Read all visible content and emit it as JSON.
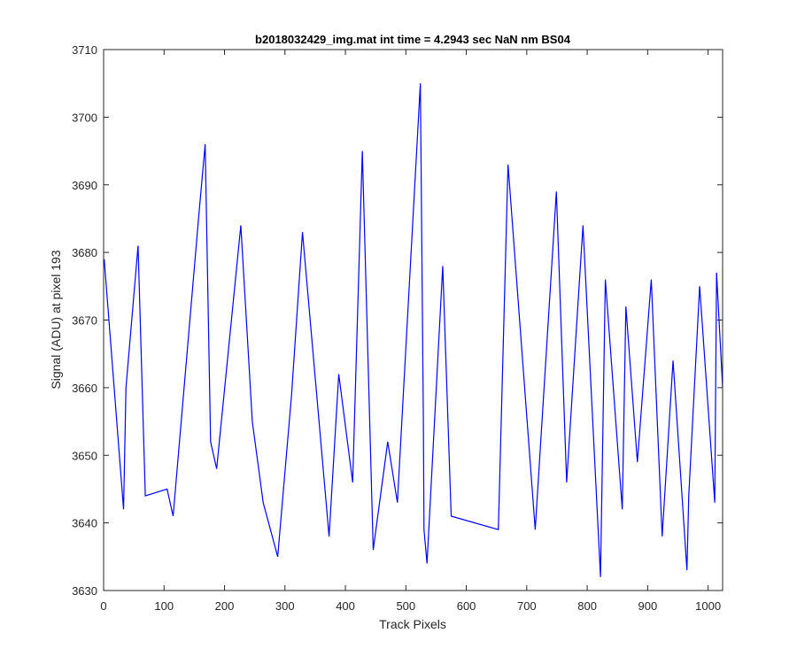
{
  "chart_data": {
    "type": "line",
    "title": "b2018032429_img.mat int time = 4.2943 sec  NaN nm BS04",
    "xlabel": "Track Pixels",
    "ylabel": "Signal (ADU) at pixel 193",
    "xlim": [
      0,
      1024
    ],
    "ylim": [
      3630,
      3710
    ],
    "xticks": [
      0,
      100,
      200,
      300,
      400,
      500,
      600,
      700,
      800,
      900,
      1000
    ],
    "yticks": [
      3630,
      3640,
      3650,
      3660,
      3670,
      3680,
      3690,
      3700,
      3710
    ],
    "grid": false,
    "line_color": "#0000FF",
    "series": [
      {
        "x": [
          1,
          33,
          37,
          57,
          69,
          105,
          115,
          158,
          168,
          177,
          187,
          227,
          246,
          264,
          288,
          311,
          329,
          373,
          389,
          412,
          428,
          446,
          470,
          486,
          524,
          529,
          530,
          535,
          561,
          575,
          653,
          669,
          714,
          749,
          766,
          793,
          822,
          830,
          858,
          864,
          883,
          906,
          924,
          942,
          965,
          968,
          986,
          1011,
          1014,
          1024
        ],
        "values": [
          3679,
          3642,
          3660,
          3681,
          3644,
          3645,
          3641,
          3686,
          3696,
          3652,
          3648,
          3684,
          3655,
          3643,
          3635,
          3659,
          3683,
          3638,
          3662,
          3646,
          3695,
          3636,
          3652,
          3643,
          3705,
          3655,
          3639,
          3634,
          3678,
          3641,
          3639,
          3693,
          3639,
          3689,
          3646,
          3684,
          3632,
          3676,
          3642,
          3672,
          3649,
          3676,
          3638,
          3664,
          3633,
          3644,
          3675,
          3643,
          3677,
          3660
        ]
      }
    ]
  }
}
